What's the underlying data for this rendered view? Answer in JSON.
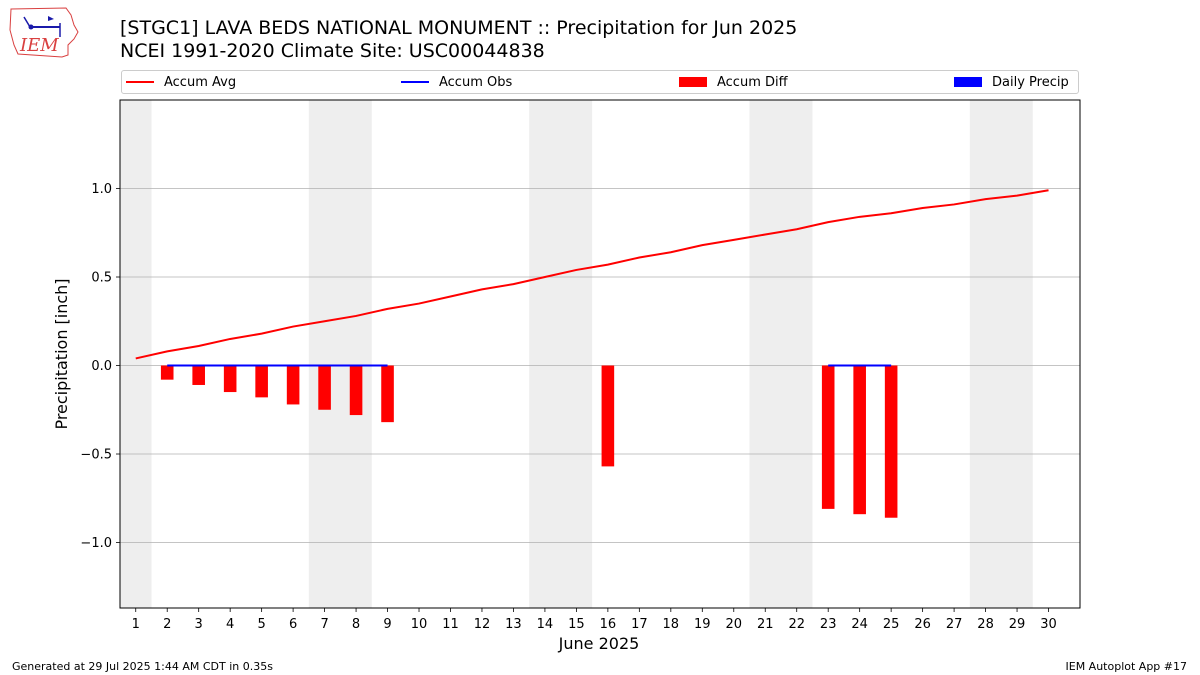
{
  "title_line1": "[STGC1] LAVA BEDS NATIONAL MONUMENT :: Precipitation for Jun 2025",
  "title_line2": "NCEI 1991-2020 Climate Site: USC00044838",
  "footer_left": "Generated at 29 Jul 2025 1:44 AM CDT in 0.35s",
  "footer_right": "IEM Autoplot App #17",
  "logo_text": "IEM",
  "colors": {
    "accum_avg": "#ff0000",
    "accum_obs": "#0000ff",
    "accum_diff": "#ff0000",
    "daily_precip": "#0000ff",
    "weekend_shade": "#eeeeee",
    "grid": "#b0b0b0"
  },
  "chart_data": {
    "type": "bar",
    "xlabel": "June 2025",
    "ylabel": "Precipitation [inch]",
    "x": [
      1,
      2,
      3,
      4,
      5,
      6,
      7,
      8,
      9,
      10,
      11,
      12,
      13,
      14,
      15,
      16,
      17,
      18,
      19,
      20,
      21,
      22,
      23,
      24,
      25,
      26,
      27,
      28,
      29,
      30
    ],
    "ylim": [
      -1.37,
      1.5
    ],
    "xlim": [
      0.5,
      31
    ],
    "yticks": [
      -1.0,
      -0.5,
      0.0,
      0.5,
      1.0
    ],
    "ytick_labels": [
      "−1.0",
      "−0.5",
      "0.0",
      "0.5",
      "1.0"
    ],
    "grid": "horizontal",
    "legend_position": "top",
    "legend": [
      "Accum Avg",
      "Accum Obs",
      "Accum Diff",
      "Daily Precip"
    ],
    "weekend_shading": [
      [
        0.5,
        1.5
      ],
      [
        6.5,
        8.5
      ],
      [
        13.5,
        15.5
      ],
      [
        20.5,
        22.5
      ],
      [
        27.5,
        29.5
      ]
    ],
    "series": [
      {
        "name": "Accum Avg",
        "kind": "line",
        "x": [
          1,
          2,
          3,
          4,
          5,
          6,
          7,
          8,
          9,
          10,
          11,
          12,
          13,
          14,
          15,
          16,
          17,
          18,
          19,
          20,
          21,
          22,
          23,
          24,
          25,
          26,
          27,
          28,
          29,
          30
        ],
        "values": [
          0.04,
          0.08,
          0.11,
          0.15,
          0.18,
          0.22,
          0.25,
          0.28,
          0.32,
          0.35,
          0.39,
          0.43,
          0.46,
          0.5,
          0.54,
          0.57,
          0.61,
          0.64,
          0.68,
          0.71,
          0.74,
          0.77,
          0.81,
          0.84,
          0.86,
          0.89,
          0.91,
          0.94,
          0.96,
          0.99
        ]
      },
      {
        "name": "Accum Obs",
        "kind": "line",
        "segments": [
          {
            "x": [
              2,
              3,
              4,
              5,
              6,
              7,
              8,
              9
            ],
            "values": [
              0,
              0,
              0,
              0,
              0,
              0,
              0,
              0
            ]
          },
          {
            "x": [
              23,
              24,
              25
            ],
            "values": [
              0,
              0,
              0
            ]
          }
        ]
      },
      {
        "name": "Accum Diff",
        "kind": "bar",
        "x": [
          2,
          3,
          4,
          5,
          6,
          7,
          8,
          9,
          16,
          23,
          24,
          25
        ],
        "values": [
          -0.08,
          -0.11,
          -0.15,
          -0.18,
          -0.22,
          -0.25,
          -0.28,
          -0.32,
          -0.57,
          -0.81,
          -0.84,
          -0.86
        ]
      },
      {
        "name": "Daily Precip",
        "kind": "bar",
        "x": [],
        "values": []
      }
    ]
  }
}
